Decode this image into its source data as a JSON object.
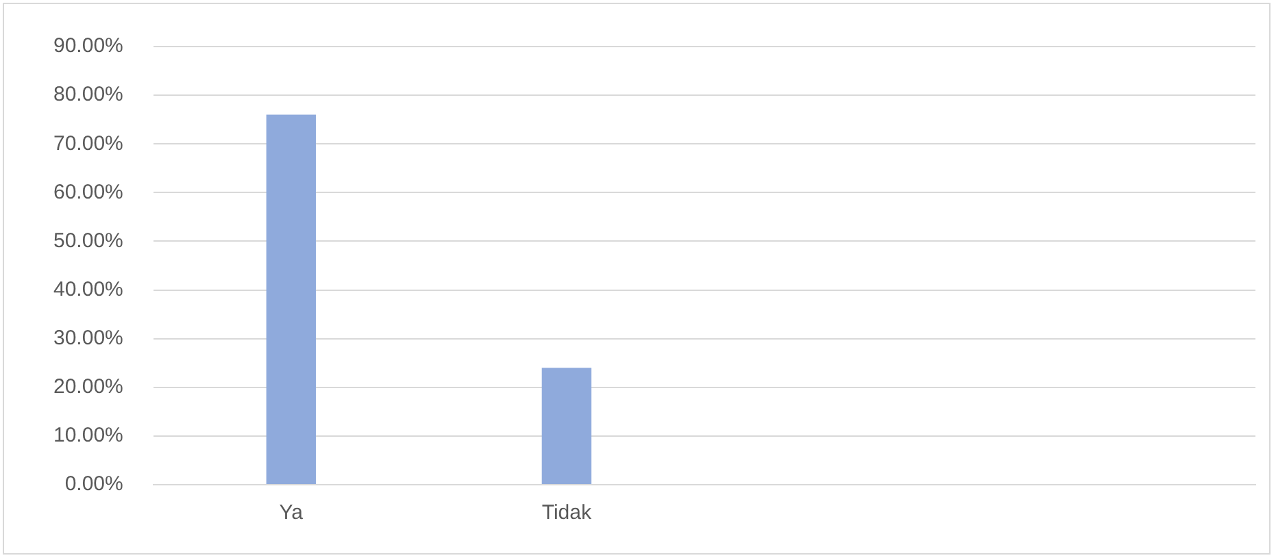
{
  "chart_data": {
    "type": "bar",
    "categories": [
      "Ya",
      "Tidak",
      null,
      null
    ],
    "values": [
      76,
      24,
      null,
      null
    ],
    "color": "#8faadc",
    "ylim": [
      0,
      90
    ],
    "yticks": [
      {
        "value": 0,
        "label": "0.00%"
      },
      {
        "value": 10,
        "label": "10.00%"
      },
      {
        "value": 20,
        "label": "20.00%"
      },
      {
        "value": 30,
        "label": "30.00%"
      },
      {
        "value": 40,
        "label": "40.00%"
      },
      {
        "value": 50,
        "label": "50.00%"
      },
      {
        "value": 60,
        "label": "60.00%"
      },
      {
        "value": 70,
        "label": "70.00%"
      },
      {
        "value": 80,
        "label": "80.00%"
      },
      {
        "value": 90,
        "label": "90.00%"
      }
    ],
    "grid": "y"
  }
}
